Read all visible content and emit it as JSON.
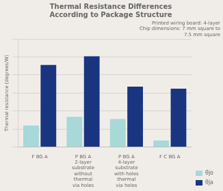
{
  "chart_data": {
    "type": "bar",
    "title": "Thermal Resistance Differences\nAccording to Package Structure",
    "subtitle": "Printed wiring board: 4-layer\nChip dimensions: 7 mm square to\n7.5 mm square",
    "ylabel": "Thermal resistance (degrees/W)",
    "categories": [
      "F BG A",
      "P BG A",
      "P BG A",
      "F C BG A"
    ],
    "annotations": [
      null,
      "2-layer\nsubstrate\nwithout\nthermal\nvia holes",
      "4-layer\nsubstrate\nwith holes\nthermal\nvia holes",
      null
    ],
    "series": [
      {
        "name": "θjo",
        "color": "#a8d8d8",
        "values": [
          10,
          14,
          13,
          3
        ]
      },
      {
        "name": "θja",
        "color": "#1a3580",
        "values": [
          38,
          42,
          28,
          27
        ]
      }
    ],
    "ylim": [
      0,
      50
    ],
    "yticks": [
      0,
      8.333333333333334,
      16.666666666666668,
      25,
      33.333333333333336,
      41.66666666666667,
      50
    ],
    "grid": true,
    "legend": "lower right",
    "tick_labels": "x"
  }
}
